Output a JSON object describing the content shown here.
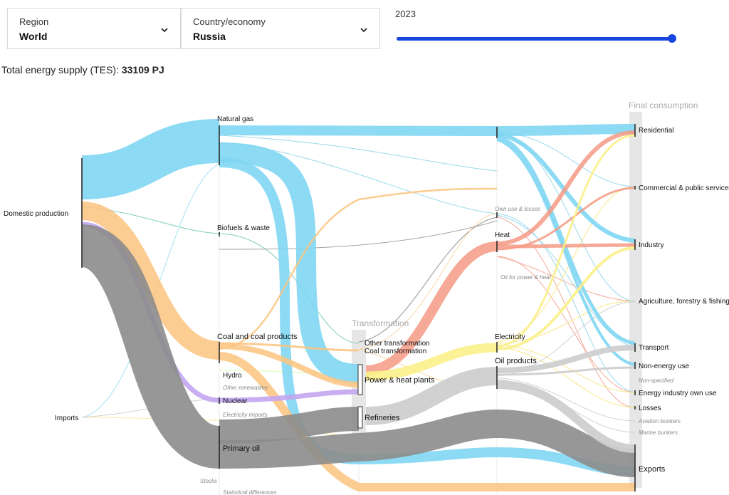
{
  "controls": {
    "region": {
      "label": "Region",
      "value": "World"
    },
    "country": {
      "label": "Country/economy",
      "value": "Russia"
    },
    "year": {
      "value": "2023",
      "position": 1.0
    }
  },
  "summary": {
    "prefix": "Total energy supply (TES): ",
    "value": "33109 PJ"
  },
  "columns": {
    "transformation": "Transformation",
    "final": "Final consumption"
  },
  "nodes": {
    "domestic": "Domestic production",
    "imports": "Imports",
    "natural_gas": "Natural gas",
    "biofuels": "Biofuels & waste",
    "coal": "Coal and coal products",
    "hydro": "Hydro",
    "other_renew": "Other renewables",
    "nuclear": "Nuclear",
    "elec_imports": "Electricity imports",
    "primary_oil": "Primary oil",
    "stocks": "Stocks",
    "stat_diff": "Statistical differences",
    "other_transf": "Other transformation",
    "coal_transf": "Coal transformation",
    "power_heat": "Power & heat plants",
    "refineries": "Refineries",
    "own_use": "Own use & losses",
    "heat": "Heat",
    "oil_power_heat": "Oil for power & heat",
    "electricity": "Electricity",
    "oil_products": "Oil products",
    "residential": "Residential",
    "commercial": "Commercial & public services",
    "industry": "Industry",
    "agriculture": "Agriculture, forestry & fishing",
    "transport": "Transport",
    "non_energy": "Non-energy use",
    "non_specified": "Non-specified",
    "energy_own_use": "Energy industry own use",
    "losses": "Losses",
    "aviation": "Aviation bunkers",
    "marine": "Marine bunkers",
    "exports": "Exports"
  },
  "colors": {
    "gas": "#7fd6f3",
    "coal": "#fbc47f",
    "oil": "#8c8c8c",
    "nuclear": "#c3a6ef",
    "heat": "#f59a84",
    "electricity": "#fbef8a",
    "oil_products": "#cfcfcf",
    "accent": "#1746e0"
  }
}
